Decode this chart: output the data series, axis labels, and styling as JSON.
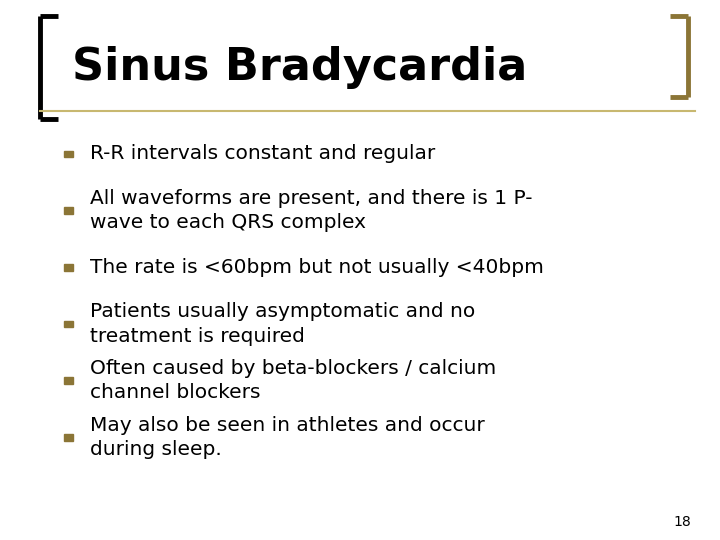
{
  "title": "Sinus Bradycardia",
  "title_fontsize": 32,
  "title_color": "#000000",
  "bullet_color": "#8B7536",
  "text_color": "#000000",
  "background_color": "#FFFFFF",
  "bullet_points": [
    "R-R intervals constant and regular",
    "All waveforms are present, and there is 1 P-\nwave to each QRS complex",
    "The rate is <60bpm but not usually <40bpm",
    "Patients usually asymptomatic and no\ntreatment is required",
    "Often caused by beta-blockers / calcium\nchannel blockers",
    "May also be seen in athletes and occur\nduring sleep."
  ],
  "text_fontsize": 14.5,
  "slide_number": "18",
  "left_bracket_color": "#000000",
  "right_bracket_color": "#8B7536",
  "title_underline_color": "#C8B870",
  "slide_num_fontsize": 10
}
